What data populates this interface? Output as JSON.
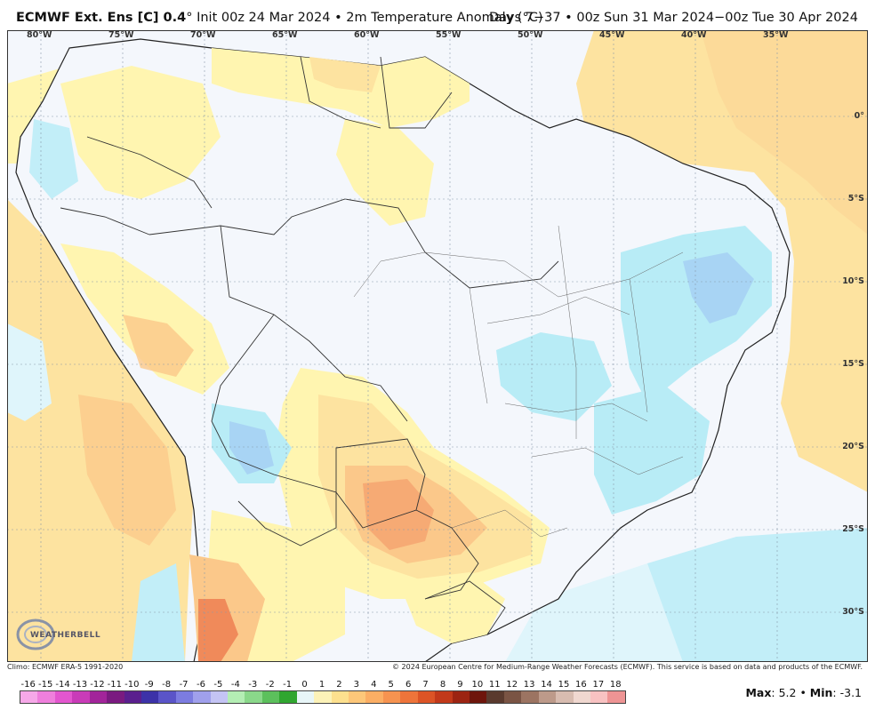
{
  "title": {
    "model": "ECMWF Ext. Ens [C] 0.4",
    "degree_mark": "°",
    "init": "Init 00z 24 Mar 2024",
    "bullet": "•",
    "field": "2m Temperature Anomaly (°C)",
    "period": "Days 7−37 • 00z Sun 31 Mar 2024−00z Tue 30 Apr 2024"
  },
  "longitude_labels": [
    "80°W",
    "75°W",
    "70°W",
    "65°W",
    "60°W",
    "55°W",
    "50°W",
    "45°W",
    "40°W",
    "35°W"
  ],
  "latitude_labels": [
    "0°",
    "5°S",
    "10°S",
    "15°S",
    "20°S",
    "25°S",
    "30°S"
  ],
  "footer": {
    "climo": "Climo: ECMWF ERA-5 1991-2020",
    "copyright": "© 2024 European Centre for Medium-Range Weather Forecasts (ECMWF). This service is based on data and products of the ECMWF."
  },
  "logo": {
    "text": "WEATHERBELL"
  },
  "colorbar": {
    "ticks": [
      "-16",
      "-15",
      "-14",
      "-13",
      "-12",
      "-11",
      "-10",
      "-9",
      "-8",
      "-7",
      "-6",
      "-5",
      "-4",
      "-3",
      "-2",
      "-1",
      "0",
      "1",
      "2",
      "3",
      "4",
      "5",
      "6",
      "7",
      "8",
      "9",
      "10",
      "11",
      "12",
      "13",
      "14",
      "15",
      "16",
      "17",
      "18"
    ],
    "colors": [
      "#f6a8e8",
      "#ef7fdc",
      "#e356cf",
      "#c93bb8",
      "#a2249a",
      "#7a1a80",
      "#5a1f8e",
      "#3c32a8",
      "#5a54c8",
      "#7c7ce0",
      "#a0a0ec",
      "#c4c4f4",
      "#b4eeb4",
      "#8ad88a",
      "#5cc05c",
      "#30a630",
      "#e8f6f8",
      "#fcf2b8",
      "#fde08e",
      "#fdc779",
      "#fbae64",
      "#f69350",
      "#ee743a",
      "#dc5426",
      "#c2391a",
      "#9c2412",
      "#6e150c",
      "#5a3a2e",
      "#7a5444",
      "#9c7462",
      "#bd9a8a",
      "#d8bcb0",
      "#f0d8d0",
      "#f8c2c2",
      "#ee9494"
    ]
  },
  "stats": {
    "max_label": "Max",
    "max_value": ": 5.2",
    "separator": " • ",
    "min_label": "Min",
    "min_value": ": -3.1"
  },
  "colors": {
    "map_background": "#f4f7fc",
    "warm_light": "#fff5b0",
    "warm_medium": "#fde3a0",
    "warm_orange": "#fbc88a",
    "warm_strong": "#f5a470",
    "cool_light": "#b8ecf6",
    "cool_medium": "#a8d4f4",
    "border_line": "#222222"
  }
}
